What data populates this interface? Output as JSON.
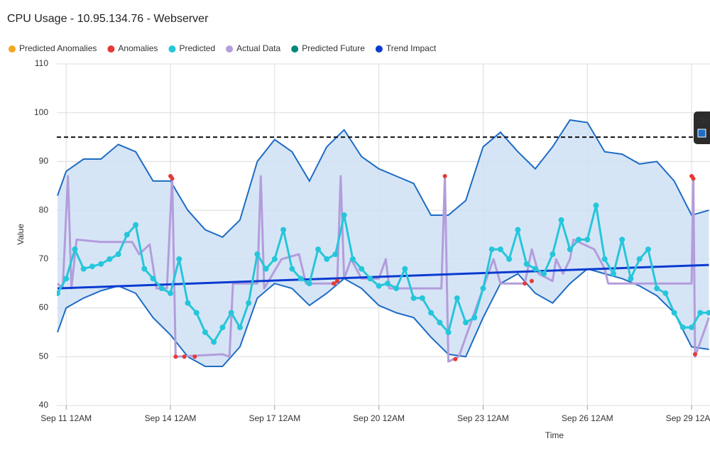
{
  "chart_data": {
    "type": "line",
    "title": "CPU Usage - 10.95.134.76 - Webserver",
    "x_label": "Time",
    "y_label": "Value",
    "xlim": [
      10.73,
      29.53
    ],
    "ylim": [
      40,
      110
    ],
    "xticks": [
      {
        "value": 11,
        "label": "Sep 11 12AM"
      },
      {
        "value": 14,
        "label": "Sep 14 12AM"
      },
      {
        "value": 17,
        "label": "Sep 17 12AM"
      },
      {
        "value": 20,
        "label": "Sep 20 12AM"
      },
      {
        "value": 23,
        "label": "Sep 23 12AM"
      },
      {
        "value": 26,
        "label": "Sep 26 12AM"
      },
      {
        "value": 29,
        "label": "Sep 29 12AM"
      }
    ],
    "yticks": [
      40,
      50,
      60,
      70,
      80,
      90,
      100,
      110
    ],
    "grid": true,
    "threshold": 95,
    "tooltip_text": "Oc",
    "band": {
      "color": "#cfe0f5",
      "line_color": "#1e6cc4",
      "x": [
        10.75,
        11,
        11.5,
        12,
        12.5,
        13,
        13.5,
        14,
        14.5,
        15,
        15.5,
        16,
        16.5,
        17,
        17.5,
        18,
        18.5,
        19,
        19.5,
        20,
        20.5,
        21,
        21.5,
        22,
        22.5,
        23,
        23.5,
        24,
        24.5,
        25,
        25.5,
        26,
        26.5,
        27,
        27.5,
        28,
        28.5,
        29,
        29.5
      ],
      "upper": [
        83,
        88,
        90.5,
        90.5,
        93.5,
        92,
        86,
        86,
        80,
        76,
        74.5,
        78,
        90,
        94.5,
        92,
        86,
        93,
        96.5,
        91,
        88.5,
        87,
        85.5,
        79,
        79,
        82,
        93,
        96,
        92,
        88.5,
        93,
        98.5,
        98,
        92,
        91.5,
        89.5,
        90,
        86,
        79,
        80
      ],
      "lower": [
        55,
        60,
        62,
        63.5,
        64.5,
        63,
        58,
        54.5,
        50,
        48,
        48,
        52,
        62,
        65,
        64,
        60.5,
        63,
        66,
        64,
        60.5,
        59,
        58,
        54,
        50.5,
        50,
        58,
        65,
        67,
        63,
        61,
        65,
        68,
        67,
        66,
        64.5,
        62.5,
        59,
        52,
        51.5
      ]
    },
    "series": [
      {
        "name": "Predicted Anomalies",
        "color": "#f5a623",
        "style": "points",
        "x": [],
        "values": []
      },
      {
        "name": "Anomalies",
        "color": "#e53935",
        "style": "points",
        "x": [
          14,
          14.05,
          14.15,
          14.4,
          14.7,
          18.7,
          18.8,
          21.9,
          22.2,
          24.2,
          24.4,
          29,
          29.05,
          29.1
        ],
        "values": [
          87,
          86.5,
          50,
          50,
          50,
          65,
          65.5,
          87,
          49.5,
          65,
          65.5,
          87,
          86.5,
          50.5
        ]
      },
      {
        "name": "Predicted",
        "color": "#26c6da",
        "style": "line-markers",
        "x": [
          10.75,
          11,
          11.25,
          11.5,
          11.75,
          12,
          12.25,
          12.5,
          12.75,
          13,
          13.25,
          13.5,
          13.75,
          14,
          14.25,
          14.5,
          14.75,
          15,
          15.25,
          15.5,
          15.75,
          16,
          16.25,
          16.5,
          16.75,
          17,
          17.25,
          17.5,
          17.75,
          18,
          18.25,
          18.5,
          18.75,
          19,
          19.25,
          19.5,
          19.75,
          20,
          20.25,
          20.5,
          20.75,
          21,
          21.25,
          21.5,
          21.75,
          22,
          22.25,
          22.5,
          22.75,
          23,
          23.25,
          23.5,
          23.75,
          24,
          24.25,
          24.5,
          24.75,
          25,
          25.25,
          25.5,
          25.75,
          26,
          26.25,
          26.5,
          26.75,
          27,
          27.25,
          27.5,
          27.75,
          28,
          28.25,
          28.5,
          28.75,
          29,
          29.25,
          29.5
        ],
        "values": [
          63,
          66,
          72,
          68,
          68.5,
          69,
          70,
          71,
          75,
          77,
          68,
          66,
          64,
          63,
          70,
          61,
          59,
          55,
          53,
          56,
          59,
          56,
          61,
          71,
          68,
          70,
          76,
          68,
          66,
          65,
          72,
          70,
          71,
          79,
          70,
          68,
          66,
          64.5,
          65,
          64,
          68,
          62,
          62,
          59,
          57,
          55,
          62,
          57,
          58,
          64,
          72,
          72,
          70,
          76,
          69,
          68,
          67,
          71,
          78,
          72,
          74,
          74,
          81,
          70,
          67,
          74,
          66,
          70,
          72,
          64,
          63,
          59,
          56,
          56,
          59,
          59
        ]
      },
      {
        "name": "Actual Data",
        "color": "#b39ddb",
        "style": "line",
        "x": [
          10.75,
          10.9,
          11.05,
          11.15,
          11.3,
          12,
          12.9,
          13.1,
          13.4,
          13.6,
          13.9,
          14.05,
          14.15,
          15.5,
          15.7,
          15.8,
          16.5,
          16.6,
          16.7,
          17.2,
          17.7,
          17.9,
          18.8,
          18.9,
          19,
          19.2,
          19.5,
          20,
          20.2,
          20.3,
          21,
          21.8,
          21.9,
          22,
          22.3,
          23.1,
          23.3,
          23.5,
          24.2,
          24.4,
          24.6,
          25,
          25.1,
          25.3,
          25.5,
          25.6,
          26.2,
          26.5,
          26.6,
          28,
          29,
          29.05,
          29.1,
          29.5
        ],
        "values": [
          65,
          64,
          87,
          64,
          74,
          73.5,
          73.5,
          71,
          73,
          64,
          64,
          87,
          50,
          50.5,
          50,
          65,
          65,
          87,
          64,
          70,
          71,
          65,
          65,
          87,
          66,
          70,
          66,
          66,
          70,
          64,
          64,
          64,
          87,
          49,
          50,
          66,
          70,
          65,
          65,
          72,
          67,
          65.5,
          70,
          67,
          70,
          74,
          72,
          68,
          65,
          65,
          65,
          87,
          50,
          58
        ]
      },
      {
        "name": "Predicted Future",
        "color": "#00897b",
        "style": "points",
        "x": [],
        "values": []
      },
      {
        "name": "Trend Impact",
        "color": "#0b3bd1",
        "style": "line",
        "x": [
          10.75,
          29.5
        ],
        "values": [
          64,
          68.8
        ]
      }
    ]
  }
}
